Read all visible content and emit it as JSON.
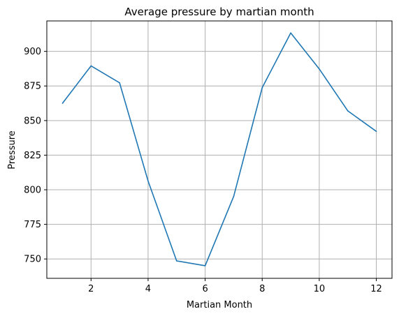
{
  "chart_data": {
    "type": "line",
    "title": "Average pressure by martian month",
    "xlabel": "Martian Month",
    "ylabel": "Pressure",
    "x": [
      1,
      2,
      3,
      4,
      5,
      6,
      7,
      8,
      9,
      10,
      11,
      12
    ],
    "series": [
      {
        "values": [
          862.5,
          889.5,
          877.3,
          806.3,
          748.6,
          745.1,
          795.2,
          873.8,
          913.3,
          887.3,
          857.0,
          842.2
        ]
      }
    ],
    "xlim": [
      0.45,
      12.55
    ],
    "ylim": [
      736,
      922
    ],
    "xticks": [
      2,
      4,
      6,
      8,
      10,
      12
    ],
    "yticks": [
      750,
      775,
      800,
      825,
      850,
      875,
      900
    ],
    "grid": true,
    "line_color": "#1f77b4"
  }
}
